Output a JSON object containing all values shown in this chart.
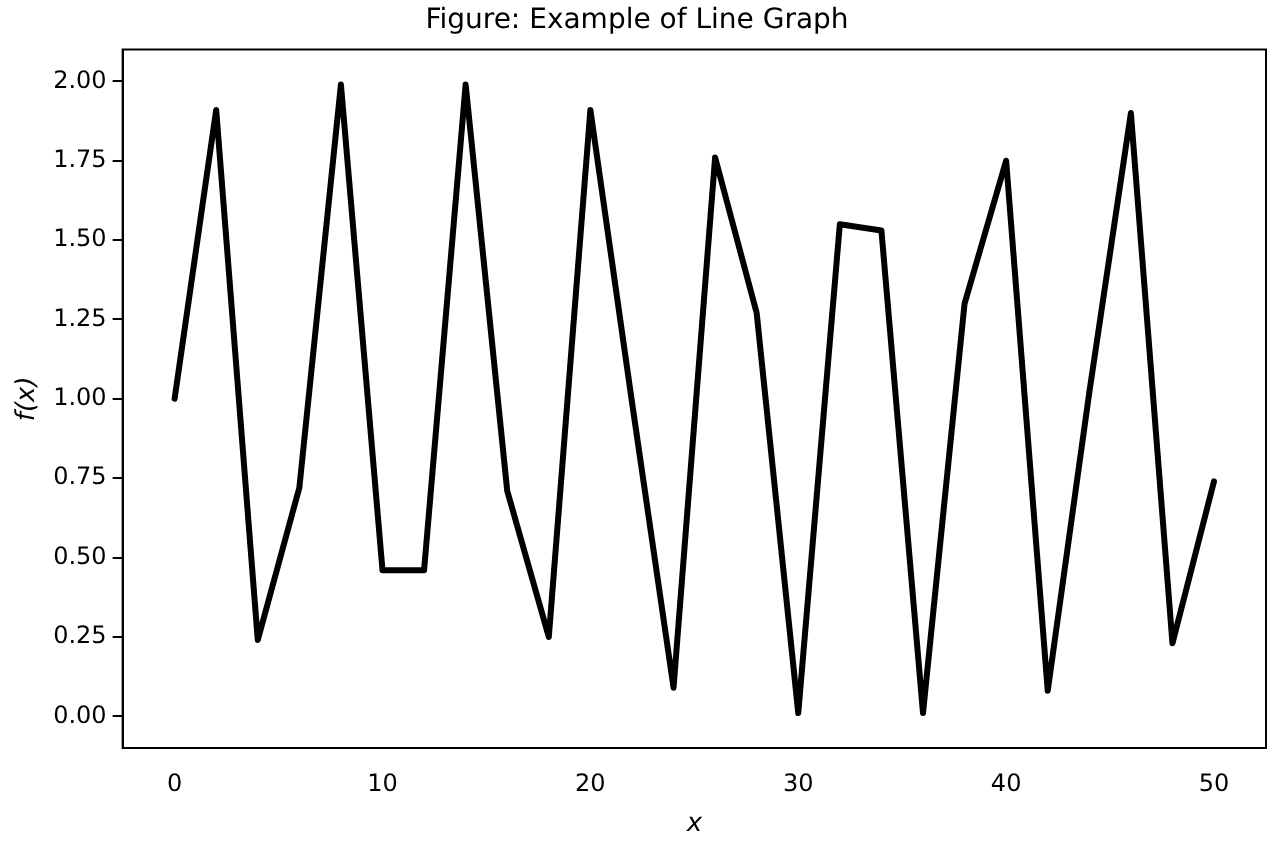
{
  "chart_data": {
    "type": "line",
    "title": "Figure: Example of Line Graph",
    "xlabel": "x",
    "ylabel": "f(x)",
    "x": [
      0,
      2,
      4,
      6,
      8,
      10,
      12,
      14,
      16,
      18,
      20,
      22,
      24,
      26,
      28,
      30,
      32,
      34,
      36,
      38,
      40,
      42,
      44,
      46,
      48,
      50
    ],
    "series": [
      {
        "color": "#000000",
        "values": [
          1.0,
          1.91,
          0.24,
          0.72,
          1.99,
          0.46,
          0.46,
          1.99,
          0.71,
          0.25,
          1.91,
          0.99,
          0.09,
          1.76,
          1.27,
          0.01,
          1.55,
          1.53,
          0.01,
          1.3,
          1.75,
          0.08,
          1.02,
          1.9,
          0.23,
          0.74
        ]
      }
    ],
    "xlim": [
      -2.5,
      52.5
    ],
    "xticks": [
      0,
      10,
      20,
      30,
      40,
      50
    ],
    "ylim": [
      -0.1,
      2.1
    ],
    "yticks": [
      {
        "value": 0,
        "label": "0.00"
      },
      {
        "value": 0.25,
        "label": "0.25"
      },
      {
        "value": 0.5,
        "label": "0.50"
      },
      {
        "value": 0.75,
        "label": "0.75"
      },
      {
        "value": 1,
        "label": "1.00"
      },
      {
        "value": 1.25,
        "label": "1.25"
      },
      {
        "value": 1.5,
        "label": "1.50"
      },
      {
        "value": 1.75,
        "label": "1.75"
      },
      {
        "value": 2,
        "label": "2.00"
      }
    ],
    "grid": false,
    "legend": false,
    "marker": "none",
    "line_style": "solid"
  }
}
